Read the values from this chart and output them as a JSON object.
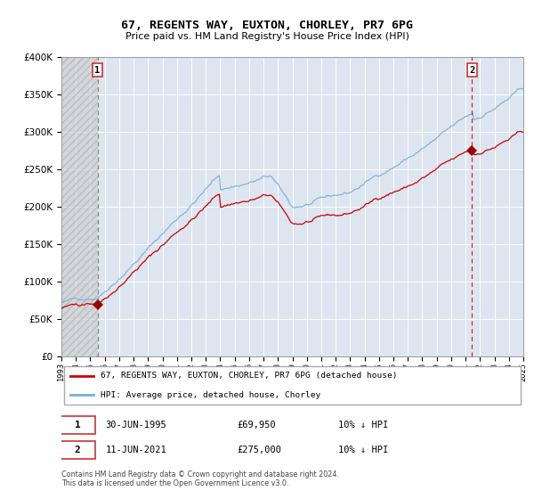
{
  "title": "67, REGENTS WAY, EUXTON, CHORLEY, PR7 6PG",
  "subtitle": "Price paid vs. HM Land Registry's House Price Index (HPI)",
  "legend_line1": "67, REGENTS WAY, EUXTON, CHORLEY, PR7 6PG (detached house)",
  "legend_line2": "HPI: Average price, detached house, Chorley",
  "purchase1_label": "1",
  "purchase1_date": "30-JUN-1995",
  "purchase1_price": "£69,950",
  "purchase1_hpi": "10% ↓ HPI",
  "purchase2_label": "2",
  "purchase2_date": "11-JUN-2021",
  "purchase2_price": "£275,000",
  "purchase2_hpi": "10% ↓ HPI",
  "footer": "Contains HM Land Registry data © Crown copyright and database right 2024.\nThis data is licensed under the Open Government Licence v3.0.",
  "red_color": "#cc0000",
  "blue_color": "#7bafd4",
  "background_color": "#dde5f0",
  "grid_color": "#ffffff",
  "vline1_color": "#888888",
  "vline2_color": "#dd2222",
  "marker_color": "#990000",
  "ylim": [
    0,
    400000
  ],
  "yticks": [
    0,
    50000,
    100000,
    150000,
    200000,
    250000,
    300000,
    350000,
    400000
  ],
  "start_year": 1993,
  "end_year": 2025,
  "purchase1_year": 1995.5,
  "purchase2_year": 2021.45,
  "purchase1_value": 69950,
  "purchase2_value": 275000,
  "seed": 42
}
